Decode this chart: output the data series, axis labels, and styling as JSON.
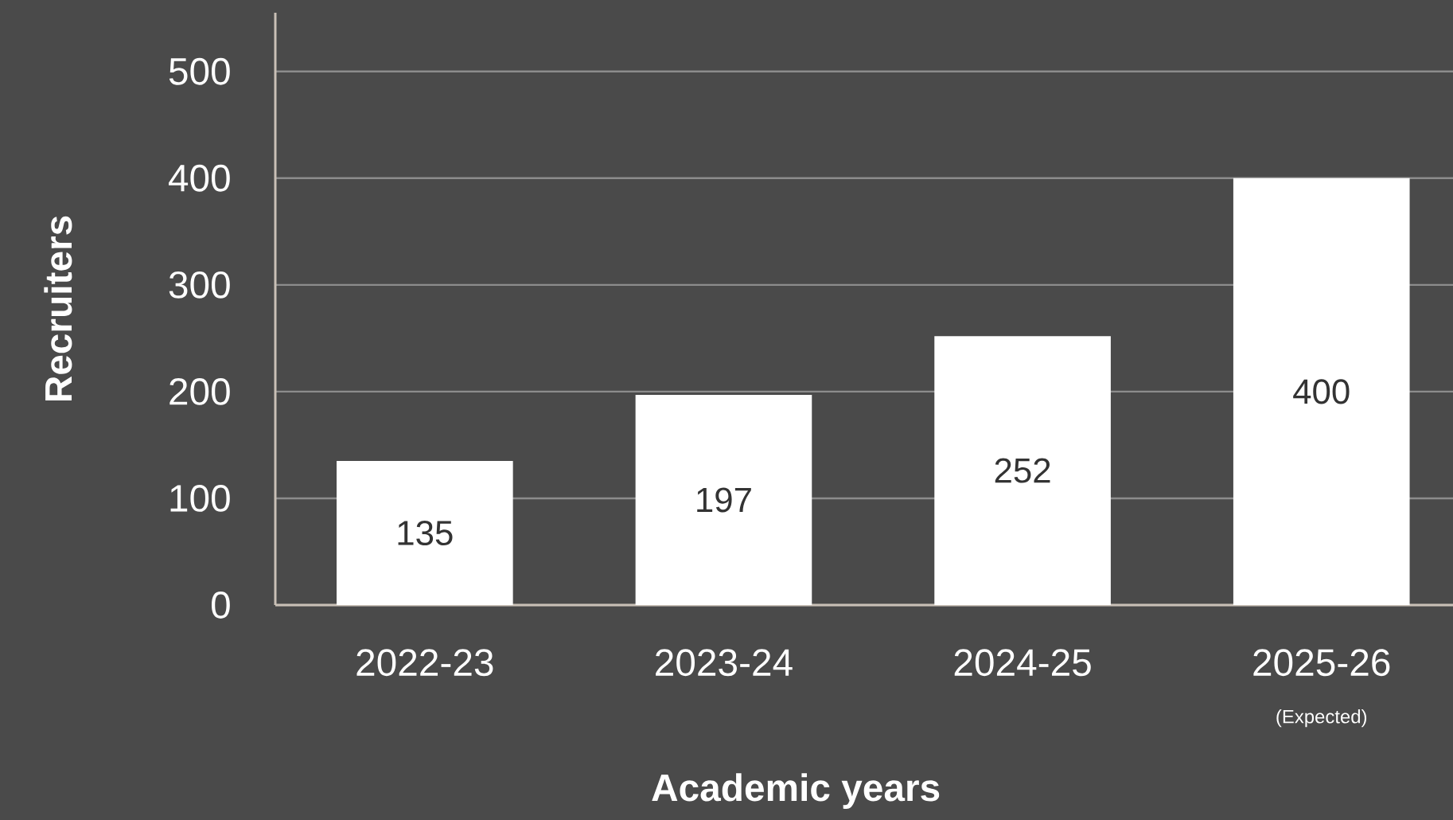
{
  "chart_data": {
    "type": "bar",
    "xlabel": "Academic years",
    "ylabel": "Recruiters",
    "categories": [
      "2022-23",
      "2023-24",
      "2024-25",
      "2025-26"
    ],
    "values": [
      135,
      197,
      252,
      400
    ],
    "color": "#ffffff",
    "ylim": [
      0,
      555
    ],
    "yticks": [
      0,
      100,
      200,
      300,
      400,
      500
    ],
    "grid": "y",
    "data_labels": true,
    "annotations": [
      "(Expected)"
    ]
  }
}
